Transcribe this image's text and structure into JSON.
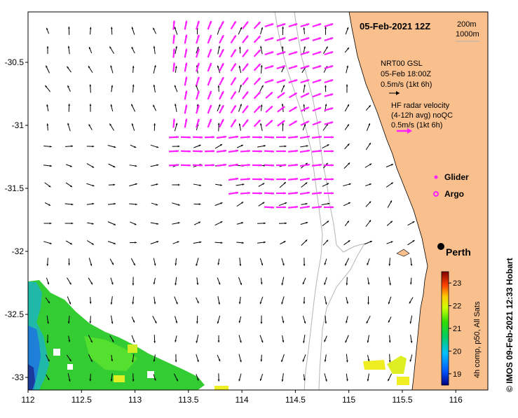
{
  "map": {
    "date_title": "05-Feb-2021 12Z",
    "isobath_labels": [
      "200m",
      "1000m"
    ],
    "lon_ticks": [
      "112",
      "112.5",
      "113",
      "113.5",
      "114",
      "114.5",
      "115",
      "115.5",
      "116"
    ],
    "lat_ticks": [
      "-30.5",
      "-31",
      "-31.5",
      "-32",
      "-32.5",
      "-33"
    ],
    "lon_range": [
      112,
      116.3
    ],
    "lat_range": [
      -33.1,
      -30.1
    ],
    "coast_color": "#f9c08e",
    "ocean_color": "#ffffff",
    "isobath_color": "#b0b0b0",
    "vector_color": "#000000",
    "radar_color": "#ff22ff"
  },
  "legend": {
    "model_name": "NRT00 GSL",
    "model_time": "05-Feb 18:00Z",
    "model_scale": "0.5m/s (1kt 6h)",
    "radar_title": "HF radar velocity",
    "radar_avg": "(4-12h avg) noQC",
    "radar_scale": "0.5m/s (1kt 6h)",
    "glider_label": "Glider",
    "argo_label": "Argo"
  },
  "city": {
    "name": "Perth",
    "lon": 115.86,
    "lat": -31.95
  },
  "colorbar": {
    "label": "4h comp, p50, All Sats",
    "ticks": [
      "19",
      "20",
      "21",
      "22",
      "23"
    ],
    "range": [
      18.5,
      23.5
    ]
  },
  "credit": "©  IMOS 09-Feb-2021 12:33 Hobart"
}
